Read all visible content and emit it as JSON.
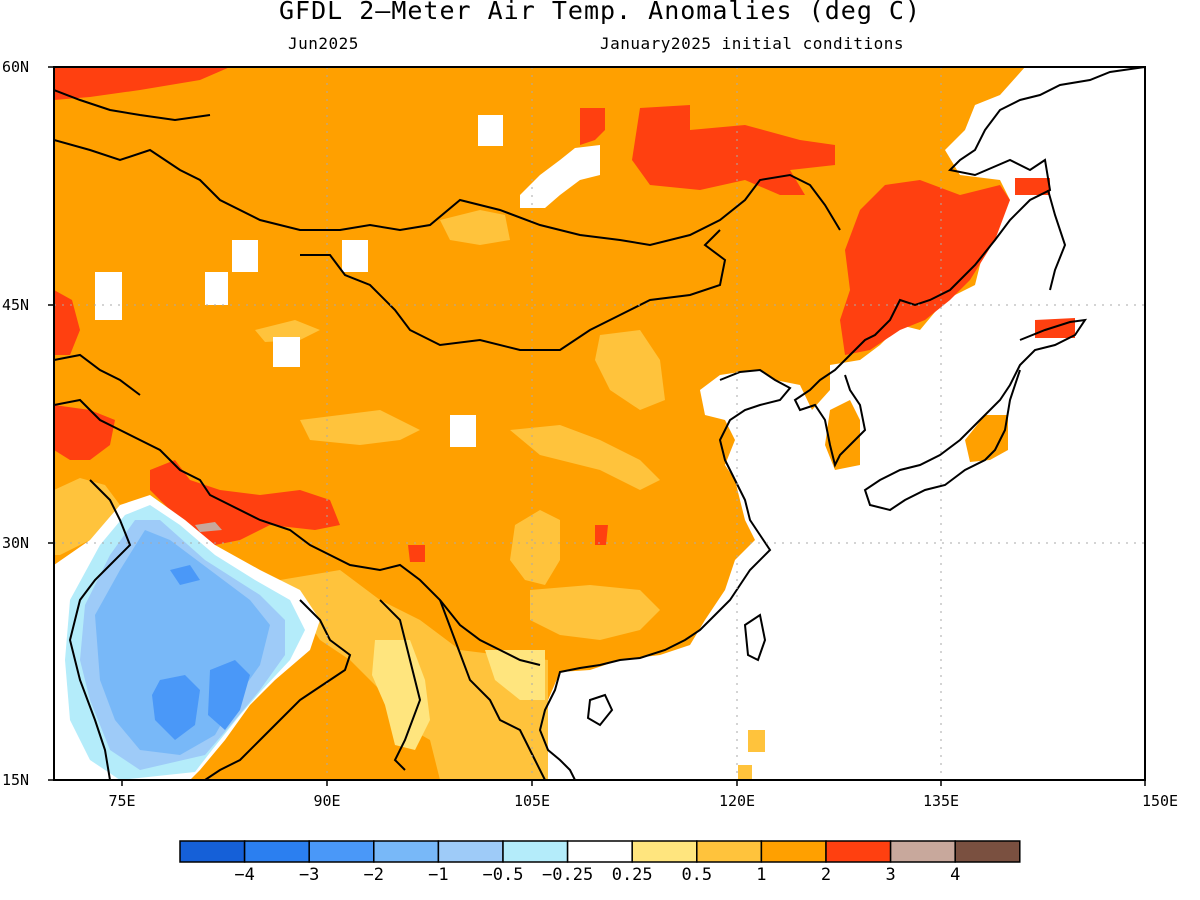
{
  "title": "GFDL 2–Meter Air Temp. Anomalies (deg C)",
  "subtitle_left": "Jun2025",
  "subtitle_right": "January2025 initial conditions",
  "lat_labels": [
    "60N",
    "45N",
    "30N",
    "15N"
  ],
  "lon_labels": [
    "75E",
    "90E",
    "105E",
    "120E",
    "135E",
    "150E"
  ],
  "map_extent": {
    "lon_min": 70,
    "lon_max": 150,
    "lat_min": 15,
    "lat_max": 60
  },
  "colorbar": {
    "colors": [
      "#1560d8",
      "#2b7ff0",
      "#4a98f8",
      "#78b8f8",
      "#9ecbf8",
      "#b4ecfa",
      "#ffffff",
      "#ffe57e",
      "#ffc33c",
      "#ffa000",
      "#ff4010",
      "#c8a89c",
      "#7a5040"
    ],
    "labels": [
      "−4",
      "−3",
      "−2",
      "−1",
      "−0.5",
      "−0.25",
      "0.25",
      "0.5",
      "1",
      "2",
      "3",
      "4"
    ]
  }
}
